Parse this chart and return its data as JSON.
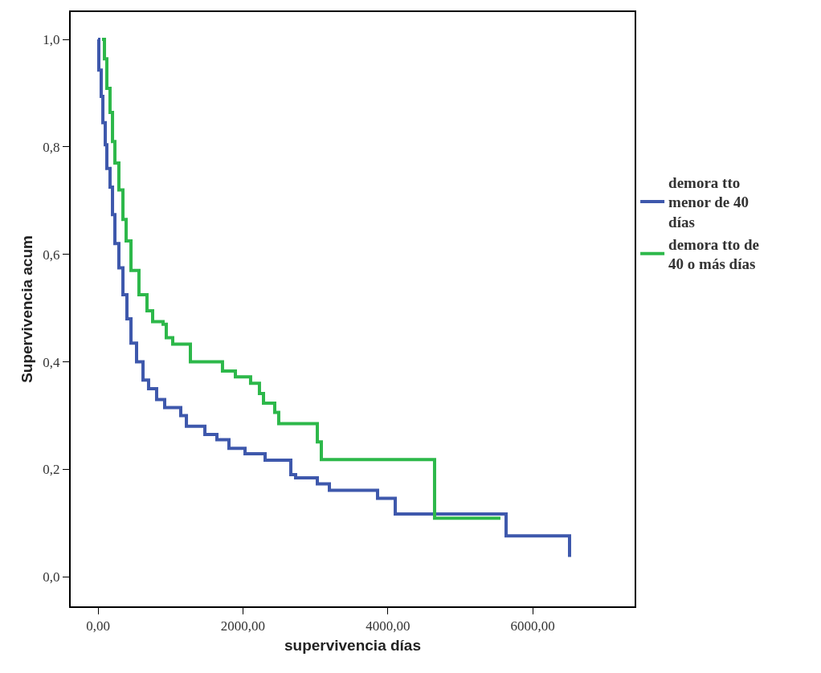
{
  "chart_data": {
    "type": "step",
    "xlabel": "supervivencia días",
    "ylabel": "Supervivencia acum",
    "xlim": [
      -377,
      7406
    ],
    "ylim": [
      -0.055,
      1.051
    ],
    "xticks": [
      {
        "value": 0,
        "label": "0,00"
      },
      {
        "value": 2000,
        "label": "2000,00"
      },
      {
        "value": 4000,
        "label": "4000,00"
      },
      {
        "value": 6000,
        "label": "6000,00"
      }
    ],
    "yticks": [
      {
        "value": 0,
        "label": "0,0"
      },
      {
        "value": 0.2,
        "label": "0,2"
      },
      {
        "value": 0.4,
        "label": "0,4"
      },
      {
        "value": 0.6,
        "label": "0,6"
      },
      {
        "value": 0.8,
        "label": "0,8"
      },
      {
        "value": 1.0,
        "label": "1,0"
      }
    ],
    "legend": "right",
    "marker": "none",
    "line_style": "solid",
    "series": [
      {
        "name": "demora tto menor de 40 días",
        "color": "#3e58ac",
        "x": [
          0,
          11,
          44,
          67,
          100,
          122,
          166,
          200,
          233,
          288,
          344,
          399,
          455,
          532,
          621,
          698,
          809,
          920,
          1142,
          1220,
          1475,
          1641,
          1807,
          2029,
          2306,
          2661,
          2727,
          3027,
          3193,
          3858,
          4102,
          5632,
          6508
        ],
        "values": [
          1.0,
          0.943,
          0.894,
          0.845,
          0.804,
          0.76,
          0.725,
          0.674,
          0.62,
          0.575,
          0.525,
          0.48,
          0.435,
          0.4,
          0.366,
          0.35,
          0.33,
          0.315,
          0.3,
          0.28,
          0.265,
          0.255,
          0.239,
          0.229,
          0.217,
          0.19,
          0.184,
          0.173,
          0.161,
          0.146,
          0.117,
          0.076,
          0.037
        ]
      },
      {
        "name": "demora tto de 40 o más días",
        "color": "#2db84a",
        "x": [
          55,
          89,
          122,
          166,
          200,
          233,
          288,
          344,
          388,
          455,
          565,
          676,
          754,
          898,
          942,
          1031,
          1275,
          1718,
          1896,
          2106,
          2228,
          2284,
          2439,
          2494,
          3027,
          3082,
          4645,
          5554
        ],
        "values": [
          1.0,
          0.964,
          0.909,
          0.864,
          0.81,
          0.77,
          0.72,
          0.665,
          0.625,
          0.57,
          0.525,
          0.495,
          0.475,
          0.47,
          0.445,
          0.433,
          0.4,
          0.383,
          0.372,
          0.36,
          0.341,
          0.323,
          0.306,
          0.285,
          0.251,
          0.218,
          0.109,
          0.109
        ]
      }
    ]
  }
}
